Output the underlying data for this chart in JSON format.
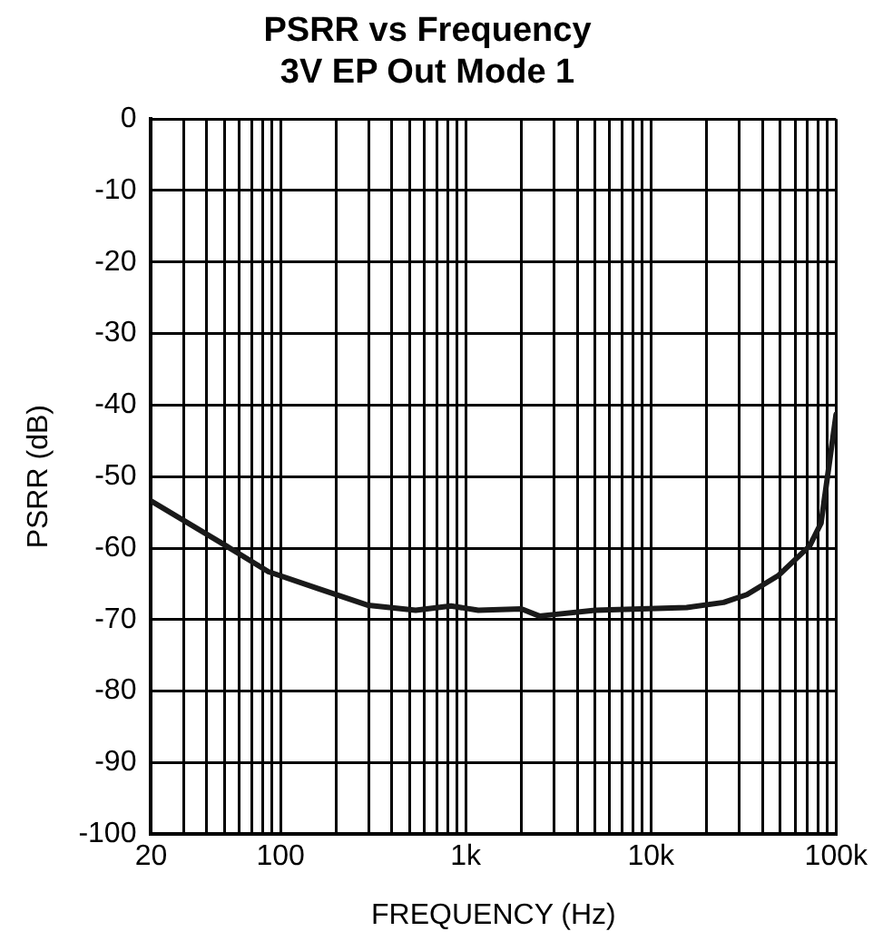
{
  "chart_data": {
    "type": "line",
    "title": "PSRR vs Frequency",
    "subtitle": "3V EP Out Mode 1",
    "xlabel": "FREQUENCY (Hz)",
    "ylabel": "PSRR (dB)",
    "log": "x",
    "x": [
      20,
      51,
      86,
      161,
      298,
      537,
      832,
      1170,
      2000,
      2500,
      5000,
      15600,
      24700,
      33000,
      49000,
      72000,
      83000,
      100000
    ],
    "series": [
      {
        "color": "#1a1a1a",
        "values": [
          -53.4,
          -59.7,
          -63.3,
          -65.7,
          -68,
          -68.7,
          -68.1,
          -68.7,
          -68.5,
          -69.5,
          -68.7,
          -68.3,
          -67.6,
          -66.5,
          -63.8,
          -59.7,
          -56.5,
          -41.3
        ]
      }
    ],
    "xlim": [
      20,
      100000
    ],
    "ylim": [
      -100,
      0
    ],
    "xticks": [
      {
        "value": 20,
        "label": "20"
      },
      {
        "value": 30,
        "label": null
      },
      {
        "value": 40,
        "label": null
      },
      {
        "value": 50,
        "label": null
      },
      {
        "value": 60,
        "label": null
      },
      {
        "value": 70,
        "label": null
      },
      {
        "value": 80,
        "label": null
      },
      {
        "value": 90,
        "label": null
      },
      {
        "value": 100,
        "label": "100"
      },
      {
        "value": 200,
        "label": null
      },
      {
        "value": 300,
        "label": null
      },
      {
        "value": 400,
        "label": null
      },
      {
        "value": 500,
        "label": null
      },
      {
        "value": 600,
        "label": null
      },
      {
        "value": 700,
        "label": null
      },
      {
        "value": 800,
        "label": null
      },
      {
        "value": 900,
        "label": null
      },
      {
        "value": 1000,
        "label": "1k"
      },
      {
        "value": 2000,
        "label": null
      },
      {
        "value": 3000,
        "label": null
      },
      {
        "value": 4000,
        "label": null
      },
      {
        "value": 5000,
        "label": null
      },
      {
        "value": 6000,
        "label": null
      },
      {
        "value": 7000,
        "label": null
      },
      {
        "value": 8000,
        "label": null
      },
      {
        "value": 9000,
        "label": null
      },
      {
        "value": 10000,
        "label": "10k"
      },
      {
        "value": 20000,
        "label": null
      },
      {
        "value": 30000,
        "label": null
      },
      {
        "value": 40000,
        "label": null
      },
      {
        "value": 50000,
        "label": null
      },
      {
        "value": 60000,
        "label": null
      },
      {
        "value": 70000,
        "label": null
      },
      {
        "value": 80000,
        "label": null
      },
      {
        "value": 90000,
        "label": null
      },
      {
        "value": 100000,
        "label": "100k"
      }
    ],
    "yticks": [
      -100,
      -90,
      -80,
      -70,
      -60,
      -50,
      -40,
      -30,
      -20,
      -10,
      0
    ],
    "grid": true,
    "legend": false,
    "marker": "none",
    "line_style": "solid"
  }
}
